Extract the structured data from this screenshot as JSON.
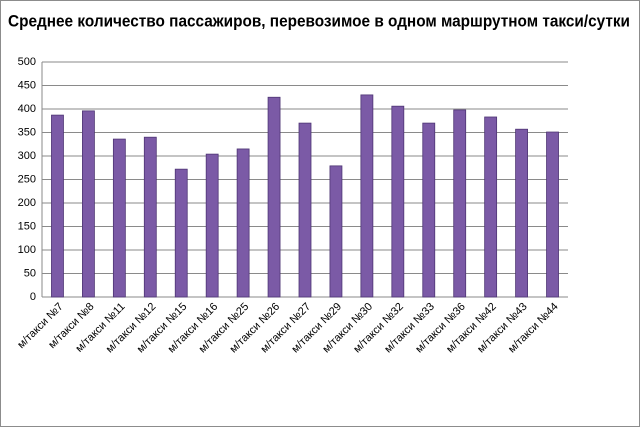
{
  "chart_data": {
    "type": "bar",
    "title": "Среднее количество пассажиров, перевозимое в одном маршрутном такси/сутки",
    "categories": [
      "м/такси №7",
      "м/такси №8",
      "м/такси №11",
      "м/такси №12",
      "м/такси №15",
      "м/такси №16",
      "м/такси №25",
      "м/такси №26",
      "м/такси №27",
      "м/такси №29",
      "м/такси №30",
      "м/такси №32",
      "м/такси №33",
      "м/такси №36",
      "м/такси №42",
      "м/такси №43",
      "м/такси №44"
    ],
    "values": [
      387,
      396,
      336,
      340,
      272,
      304,
      315,
      425,
      370,
      279,
      430,
      406,
      370,
      398,
      383,
      357,
      351
    ],
    "color": "#7b5aa6",
    "ylim": [
      0,
      500
    ],
    "yticks": [
      0,
      50,
      100,
      150,
      200,
      250,
      300,
      350,
      400,
      450,
      500
    ],
    "grid": true
  }
}
